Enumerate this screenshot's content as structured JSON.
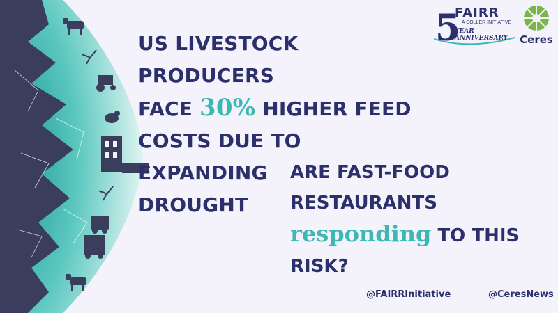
{
  "headline": {
    "line1": "US LIVESTOCK PRODUCERS",
    "line2_pre": "FACE ",
    "line2_accent": "30%",
    "line2_post": " HIGHER FEED",
    "line3": "COSTS DUE TO EXPANDING",
    "line4": "DROUGHT"
  },
  "question": {
    "line1": "ARE FAST-FOOD",
    "line2": "RESTAURANTS",
    "line3_accent": "responding",
    "line3_post": " TO THIS",
    "line4": "RISK?"
  },
  "handles": {
    "fairr": "@FAIRRInitiative",
    "ceres": "@CeresNews"
  },
  "logos": {
    "fairr_name": "FAIRR",
    "fairr_sub": "A COLLER INITIATIVE",
    "fairr_anniversary": "YEAR ANNIVERSARY",
    "fairr_number": "5",
    "ceres_name": "Ceres"
  },
  "colors": {
    "navy": "#2b2f6b",
    "teal": "#3bb8b2",
    "globe_dark": "#3b3d5c",
    "background": "#f4f3fb",
    "ceres_green": "#7ab648"
  },
  "icons": [
    "cow-icon",
    "plant-icon",
    "tractor-icon",
    "chicken-icon",
    "factory-icon",
    "truck-icon"
  ]
}
